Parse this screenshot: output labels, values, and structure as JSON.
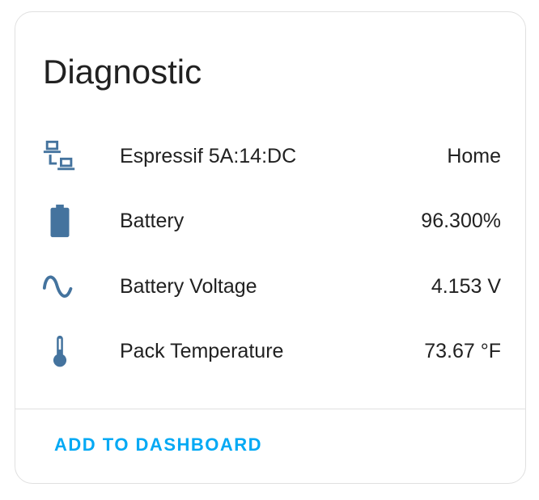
{
  "card": {
    "title": "Diagnostic",
    "icon_color": "#44739e",
    "accent_color": "#03a9f4",
    "rows": [
      {
        "icon": "lan-icon",
        "name": "Espressif 5A:14:DC",
        "value": "Home"
      },
      {
        "icon": "battery-icon",
        "name": "Battery",
        "value": "96.300%"
      },
      {
        "icon": "sine-wave-icon",
        "name": "Battery Voltage",
        "value": "4.153 V"
      },
      {
        "icon": "thermometer-icon",
        "name": "Pack Temperature",
        "value": "73.67 °F"
      }
    ],
    "action_label": "ADD TO DASHBOARD"
  }
}
